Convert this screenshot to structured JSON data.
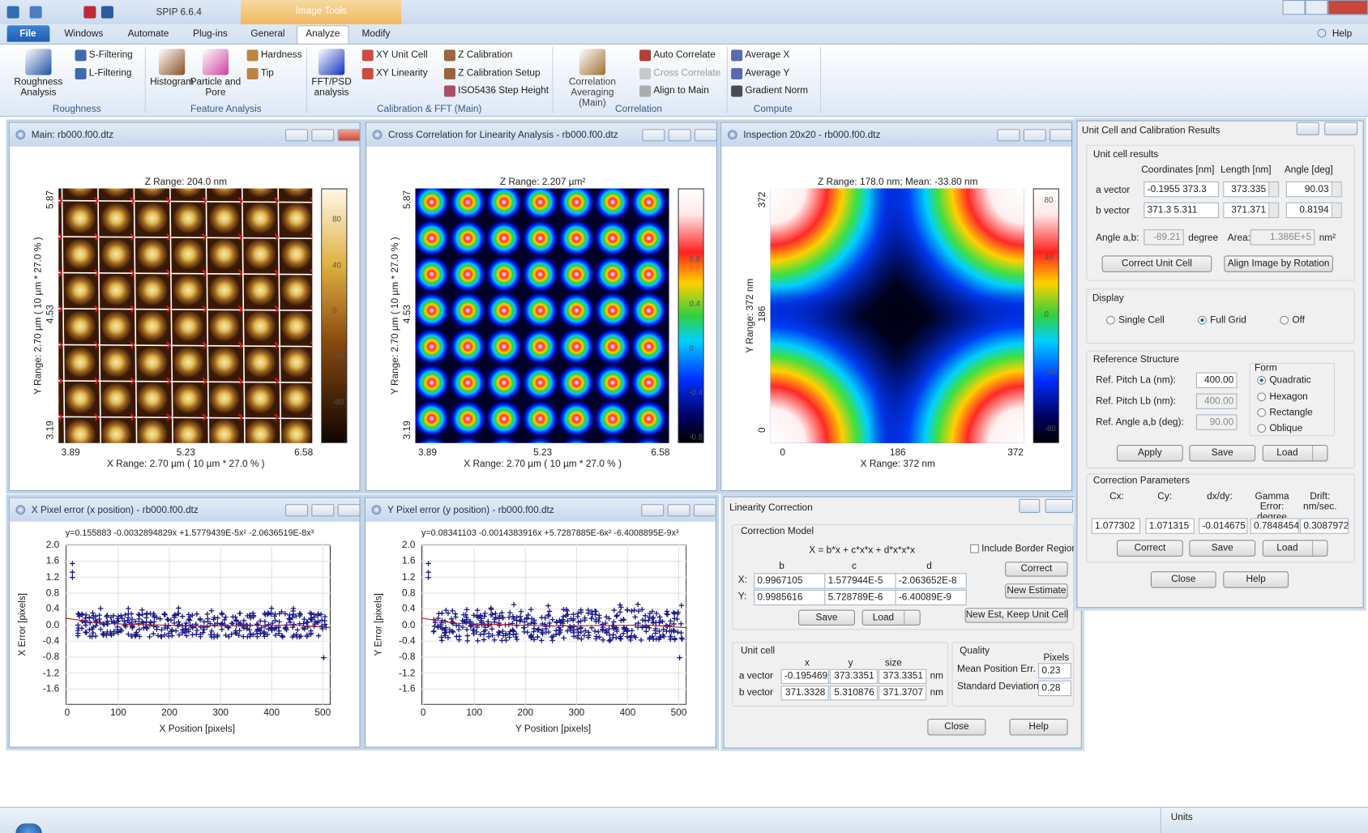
{
  "app": {
    "title": "SPIP 6.6.4",
    "context_tab": "Image Tools",
    "help": "Help"
  },
  "ribbon": {
    "tabs": [
      "File",
      "Windows",
      "Automate",
      "Plug-ins",
      "General",
      "Analyze",
      "Modify"
    ],
    "active_tab": "Analyze",
    "groups": [
      {
        "label": "Roughness",
        "buttons": [
          "Roughness Analysis",
          "S-Filtering",
          "L-Filtering"
        ]
      },
      {
        "label": "Feature Analysis",
        "buttons": [
          "Histogram",
          "Particle and Pore",
          "Hardness",
          "Tip"
        ]
      },
      {
        "label": "Calibration & FFT (Main)",
        "buttons": [
          "FFT/PSD analysis",
          "XY Unit Cell",
          "XY Linearity",
          "Z Calibration",
          "Z Calibration Setup",
          "ISO5436 Step Height"
        ]
      },
      {
        "label": "Correlation",
        "buttons": [
          "Correlation Averaging (Main)",
          "Auto Correlate",
          "Cross Correlate",
          "Align to Main"
        ]
      },
      {
        "label": "Compute",
        "buttons": [
          "Average X",
          "Average Y",
          "Gradient Norm"
        ]
      }
    ]
  },
  "windows": {
    "main": {
      "title": "Main: rb000.f00.dtz",
      "z_range": "Z Range:  204.0 nm",
      "x_range": "X Range:  2.70 µm ( 10 µm * 27.0 % )",
      "y_range": "Y Range:  2.70 µm ( 10 µm * 27.0 % )",
      "x_ticks": [
        "3.89",
        "5.23",
        "6.58"
      ],
      "y_ticks": [
        "5.87",
        "4.53",
        "3.19"
      ],
      "colorbar_ticks": [
        "80",
        "40",
        "0",
        "-40",
        "-80"
      ]
    },
    "cross_correlation": {
      "title": "Cross Correlation for Linearity Analysis - rb000.f00.dtz",
      "z_range": "Z Range:  2.207 µm²",
      "x_range": "X Range:  2.70 µm ( 10 µm * 27.0 % )",
      "y_range": "Y Range:  2.70 µm ( 10 µm * 27.0 % )",
      "x_ticks": [
        "3.89",
        "5.23",
        "6.58"
      ],
      "y_ticks": [
        "5.87",
        "4.53",
        "3.19"
      ],
      "colorbar_ticks": [
        "0.8",
        "0.4",
        "0",
        "-0.4",
        "-0.8"
      ]
    },
    "inspection": {
      "title": "Inspection 20x20 - rb000.f00.dtz",
      "z_range": "Z Range:  178.0 nm; Mean: -33.80 nm",
      "x_range": "X Range:   372 nm",
      "y_range": "Y Range:   372 nm",
      "x_ticks": [
        "0",
        "186",
        "372"
      ],
      "y_ticks": [
        "372",
        "186",
        "0"
      ],
      "colorbar_ticks": [
        "80",
        "40",
        "0",
        "-40",
        "-80"
      ]
    },
    "x_error": {
      "title": "X Pixel error (x position) - rb000.f00.dtz",
      "equation": "y=0.155883 -0.0032894829x +1.5779439E-5x² -2.0636519E-8x³",
      "y_label": "X Error [pixels]",
      "x_label": "X Position [pixels]",
      "y_ticks": [
        "2.0",
        "1.6",
        "1.2",
        "0.8",
        "0.4",
        "0.0",
        "-0.4",
        "-0.8",
        "-1.2",
        "-1.6"
      ],
      "x_ticks": [
        "0",
        "100",
        "200",
        "300",
        "400",
        "500"
      ]
    },
    "y_error": {
      "title": "Y Pixel error (y position) - rb000.f00.dtz",
      "equation": "y=0.08341103 -0.0014383916x +5.7287885E-6x² -6.4008895E-9x³",
      "y_label": "Y Error [pixels]",
      "x_label": "Y Position [pixels]",
      "y_ticks": [
        "2.0",
        "1.6",
        "1.2",
        "0.8",
        "0.4",
        "0.0",
        "-0.4",
        "-0.8",
        "-1.2",
        "-1.6"
      ],
      "x_ticks": [
        "0",
        "100",
        "200",
        "300",
        "400",
        "500"
      ]
    }
  },
  "linearity_dialog": {
    "title": "Linearity Correction",
    "model_label": "Correction Model",
    "formula": "X = b*x + c*x*x + d*x*x*x",
    "include_border": "Include Border Region",
    "columns": [
      "b",
      "c",
      "d"
    ],
    "rows": [
      {
        "label": "X:",
        "values": [
          "0.9967105",
          "1.577944E-5",
          "-2.063652E-8"
        ]
      },
      {
        "label": "Y:",
        "values": [
          "0.9985616",
          "5.728789E-6",
          "-6.40089E-9"
        ]
      }
    ],
    "side_buttons": [
      "Correct",
      "New Estimate",
      "New Est, Keep Unit Cell"
    ],
    "buttons": [
      "Save",
      "Load"
    ],
    "unit_cell": {
      "label": "Unit cell",
      "columns": [
        "x",
        "y",
        "size"
      ],
      "rows": [
        {
          "label": "a vector",
          "values": [
            "-0.195469",
            "373.3351",
            "373.3351"
          ],
          "unit": "nm"
        },
        {
          "label": "b vector",
          "values": [
            "371.3328",
            "5.310876",
            "371.3707"
          ],
          "unit": "nm"
        }
      ]
    },
    "quality": {
      "label": "Quality",
      "column": "Pixels",
      "rows": [
        {
          "label": "Mean Position Err.",
          "value": "0.23"
        },
        {
          "label": "Standard Deviation",
          "value": "0.28"
        }
      ]
    },
    "footer_buttons": [
      "Close",
      "Help"
    ]
  },
  "unit_cell_dialog": {
    "title": "Unit Cell and Calibration Results",
    "results": {
      "label": "Unit cell results",
      "headers": [
        "Coordinates [nm]",
        "Length [nm]",
        "Angle [deg]"
      ],
      "rows": [
        {
          "label": "a vector",
          "coords": "-0.1955  373.3",
          "length": "373.335",
          "angle": "90.03"
        },
        {
          "label": "b vector",
          "coords": "371.3  5.311",
          "length": "371.371",
          "angle": "0.8194"
        }
      ],
      "angle_label": "Angle a,b:",
      "angle_value": "-89.21",
      "angle_unit": "degree",
      "area_label": "Area:",
      "area_value": "1.386E+5",
      "area_unit": "nm²",
      "buttons": [
        "Correct Unit Cell",
        "Align Image by Rotation"
      ]
    },
    "display": {
      "label": "Display",
      "options": [
        "Single Cell",
        "Full Grid",
        "Off"
      ],
      "selected": "Full Grid"
    },
    "reference": {
      "label": "Reference Structure",
      "fields": [
        {
          "label": "Ref. Pitch La (nm):",
          "value": "400.00",
          "enabled": true
        },
        {
          "label": "Ref. Pitch Lb (nm):",
          "value": "400.00",
          "enabled": false
        },
        {
          "label": "Ref. Angle a,b (deg):",
          "value": "90.00",
          "enabled": false
        }
      ],
      "form_label": "Form",
      "forms": [
        "Quadratic",
        "Hexagon",
        "Rectangle",
        "Oblique"
      ],
      "selected": "Quadratic",
      "buttons": [
        "Apply",
        "Save",
        "Load"
      ]
    },
    "correction": {
      "label": "Correction Parameters",
      "headers": [
        "Cx:",
        "Cy:",
        "dx/dy:",
        "Gamma Error: degree",
        "Drift: nm/sec."
      ],
      "values": [
        "1.077302",
        "1.071315",
        "-0.014675",
        "0.7848454",
        "0.3087972"
      ],
      "buttons": [
        "Correct",
        "Save",
        "Load"
      ]
    },
    "buttons": [
      "Close",
      "Help"
    ]
  },
  "status_bar": {
    "units": "Units"
  }
}
